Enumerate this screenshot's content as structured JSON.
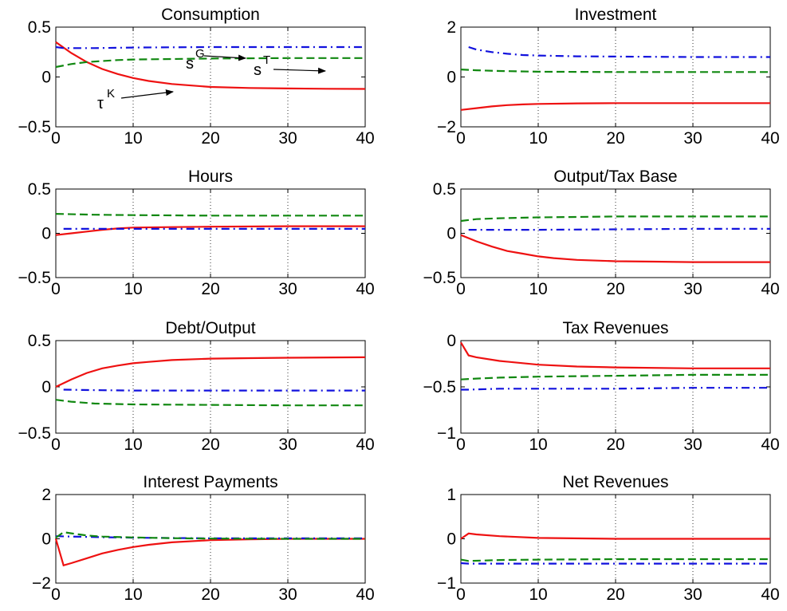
{
  "chart_data": [
    {
      "type": "line",
      "title": "Consumption",
      "xlim": [
        0,
        40
      ],
      "ylim": [
        -0.5,
        0.5
      ],
      "xticks": [
        0,
        10,
        20,
        30,
        40
      ],
      "yticks": [
        -0.5,
        0,
        0.5
      ],
      "ytick_labels": [
        "−0.5",
        "0",
        "0.5"
      ],
      "grid": "vertical dotted",
      "annotations": [
        {
          "text": "τ",
          "sup": "K",
          "points_to": "red series"
        },
        {
          "text": "s",
          "sup": "G",
          "points_to": "blue series"
        },
        {
          "text": "s",
          "sup": "T",
          "points_to": "green series"
        }
      ],
      "series": [
        {
          "color": "#ee1111",
          "style": "solid",
          "x": [
            0,
            2,
            4,
            6,
            8,
            10,
            12,
            15,
            20,
            25,
            30,
            35,
            40
          ],
          "y": [
            0.35,
            0.24,
            0.15,
            0.08,
            0.03,
            -0.01,
            -0.04,
            -0.07,
            -0.1,
            -0.11,
            -0.115,
            -0.118,
            -0.12
          ]
        },
        {
          "color": "#1111dd",
          "style": "dashdot",
          "x": [
            0,
            1,
            2,
            5,
            10,
            20,
            30,
            40
          ],
          "y": [
            0.3,
            0.29,
            0.29,
            0.29,
            0.295,
            0.3,
            0.3,
            0.3
          ]
        },
        {
          "color": "#118811",
          "style": "dashed",
          "x": [
            0,
            2,
            4,
            6,
            8,
            10,
            15,
            20,
            30,
            40
          ],
          "y": [
            0.1,
            0.13,
            0.15,
            0.16,
            0.17,
            0.175,
            0.18,
            0.185,
            0.19,
            0.19
          ]
        }
      ]
    },
    {
      "type": "line",
      "title": "Investment",
      "xlim": [
        0,
        40
      ],
      "ylim": [
        -2,
        2
      ],
      "xticks": [
        0,
        10,
        20,
        30,
        40
      ],
      "yticks": [
        -2,
        0,
        2
      ],
      "ytick_labels": [
        "−2",
        "0",
        "2"
      ],
      "grid": "vertical dotted",
      "series": [
        {
          "color": "#ee1111",
          "style": "solid",
          "x": [
            0,
            2,
            4,
            6,
            8,
            10,
            15,
            20,
            30,
            40
          ],
          "y": [
            -1.32,
            -1.25,
            -1.18,
            -1.13,
            -1.1,
            -1.08,
            -1.06,
            -1.05,
            -1.05,
            -1.05
          ]
        },
        {
          "color": "#1111dd",
          "style": "dashdot",
          "x": [
            1,
            2,
            4,
            6,
            8,
            10,
            15,
            20,
            30,
            40
          ],
          "y": [
            1.2,
            1.1,
            1.0,
            0.93,
            0.88,
            0.86,
            0.83,
            0.82,
            0.8,
            0.8
          ]
        },
        {
          "color": "#118811",
          "style": "dashed",
          "x": [
            0,
            2,
            5,
            10,
            20,
            30,
            40
          ],
          "y": [
            0.3,
            0.27,
            0.24,
            0.21,
            0.2,
            0.2,
            0.2
          ]
        }
      ]
    },
    {
      "type": "line",
      "title": "Hours",
      "xlim": [
        0,
        40
      ],
      "ylim": [
        -0.5,
        0.5
      ],
      "xticks": [
        0,
        10,
        20,
        30,
        40
      ],
      "yticks": [
        -0.5,
        0,
        0.5
      ],
      "ytick_labels": [
        "−0.5",
        "0",
        "0.5"
      ],
      "grid": "vertical dotted",
      "series": [
        {
          "color": "#ee1111",
          "style": "solid",
          "x": [
            0,
            2,
            4,
            6,
            8,
            10,
            15,
            20,
            30,
            40
          ],
          "y": [
            -0.02,
            0.0,
            0.02,
            0.04,
            0.055,
            0.065,
            0.07,
            0.075,
            0.08,
            0.08
          ]
        },
        {
          "color": "#1111dd",
          "style": "dashdot",
          "x": [
            1,
            5,
            10,
            20,
            30,
            40
          ],
          "y": [
            0.05,
            0.05,
            0.05,
            0.05,
            0.05,
            0.05
          ]
        },
        {
          "color": "#118811",
          "style": "dashed",
          "x": [
            0,
            5,
            10,
            20,
            30,
            40
          ],
          "y": [
            0.22,
            0.21,
            0.205,
            0.2,
            0.2,
            0.2
          ]
        }
      ]
    },
    {
      "type": "line",
      "title": "Output/Tax Base",
      "xlim": [
        0,
        40
      ],
      "ylim": [
        -0.5,
        0.5
      ],
      "xticks": [
        0,
        10,
        20,
        30,
        40
      ],
      "yticks": [
        -0.5,
        0,
        0.5
      ],
      "ytick_labels": [
        "−0.5",
        "0",
        "0.5"
      ],
      "grid": "vertical dotted",
      "series": [
        {
          "color": "#ee1111",
          "style": "solid",
          "x": [
            0,
            2,
            4,
            6,
            8,
            10,
            12,
            15,
            20,
            25,
            30,
            35,
            40
          ],
          "y": [
            -0.02,
            -0.09,
            -0.15,
            -0.2,
            -0.23,
            -0.26,
            -0.28,
            -0.3,
            -0.315,
            -0.32,
            -0.325,
            -0.325,
            -0.325
          ]
        },
        {
          "color": "#1111dd",
          "style": "dashdot",
          "x": [
            1,
            5,
            10,
            20,
            30,
            40
          ],
          "y": [
            0.04,
            0.04,
            0.04,
            0.045,
            0.05,
            0.05
          ]
        },
        {
          "color": "#118811",
          "style": "dashed",
          "x": [
            0,
            2,
            5,
            10,
            15,
            20,
            30,
            40
          ],
          "y": [
            0.14,
            0.16,
            0.17,
            0.18,
            0.185,
            0.19,
            0.19,
            0.19
          ]
        }
      ]
    },
    {
      "type": "line",
      "title": "Debt/Output",
      "xlim": [
        0,
        40
      ],
      "ylim": [
        -0.5,
        0.5
      ],
      "xticks": [
        0,
        10,
        20,
        30,
        40
      ],
      "yticks": [
        -0.5,
        0,
        0.5
      ],
      "ytick_labels": [
        "−0.5",
        "0",
        "0.5"
      ],
      "grid": "vertical dotted",
      "series": [
        {
          "color": "#ee1111",
          "style": "solid",
          "x": [
            0,
            2,
            4,
            6,
            8,
            10,
            12,
            15,
            20,
            25,
            30,
            40
          ],
          "y": [
            0.0,
            0.08,
            0.15,
            0.2,
            0.23,
            0.255,
            0.27,
            0.29,
            0.305,
            0.31,
            0.315,
            0.32
          ]
        },
        {
          "color": "#1111dd",
          "style": "dashdot",
          "x": [
            1,
            5,
            10,
            20,
            30,
            40
          ],
          "y": [
            -0.03,
            -0.035,
            -0.04,
            -0.04,
            -0.04,
            -0.04
          ]
        },
        {
          "color": "#118811",
          "style": "dashed",
          "x": [
            0,
            2,
            5,
            10,
            20,
            30,
            40
          ],
          "y": [
            -0.14,
            -0.16,
            -0.18,
            -0.19,
            -0.195,
            -0.2,
            -0.2
          ]
        }
      ]
    },
    {
      "type": "line",
      "title": "Tax Revenues",
      "xlim": [
        0,
        40
      ],
      "ylim": [
        -1,
        0
      ],
      "xticks": [
        0,
        10,
        20,
        30,
        40
      ],
      "yticks": [
        -1,
        -0.5,
        0
      ],
      "ytick_labels": [
        "−1",
        "−0.5",
        "0"
      ],
      "grid": "vertical dotted",
      "series": [
        {
          "color": "#ee1111",
          "style": "solid",
          "x": [
            0,
            1,
            2,
            5,
            10,
            15,
            20,
            30,
            40
          ],
          "y": [
            -0.02,
            -0.16,
            -0.18,
            -0.22,
            -0.26,
            -0.28,
            -0.29,
            -0.3,
            -0.3
          ]
        },
        {
          "color": "#1111dd",
          "style": "dashdot",
          "x": [
            0,
            1,
            5,
            10,
            20,
            30,
            40
          ],
          "y": [
            -0.53,
            -0.53,
            -0.52,
            -0.52,
            -0.52,
            -0.51,
            -0.51
          ]
        },
        {
          "color": "#118811",
          "style": "dashed",
          "x": [
            0,
            2,
            5,
            10,
            20,
            30,
            40
          ],
          "y": [
            -0.42,
            -0.41,
            -0.4,
            -0.39,
            -0.38,
            -0.37,
            -0.37
          ]
        }
      ]
    },
    {
      "type": "line",
      "title": "Interest Payments",
      "xlim": [
        0,
        40
      ],
      "ylim": [
        -2,
        2
      ],
      "xticks": [
        0,
        10,
        20,
        30,
        40
      ],
      "yticks": [
        -2,
        0,
        2
      ],
      "ytick_labels": [
        "−2",
        "0",
        "2"
      ],
      "grid": "vertical dotted",
      "series": [
        {
          "color": "#ee1111",
          "style": "solid",
          "x": [
            0,
            1,
            2,
            4,
            6,
            8,
            10,
            12,
            15,
            20,
            25,
            30,
            40
          ],
          "y": [
            0.0,
            -1.2,
            -1.1,
            -0.88,
            -0.66,
            -0.5,
            -0.37,
            -0.27,
            -0.16,
            -0.06,
            -0.02,
            0.0,
            0.0
          ]
        },
        {
          "color": "#1111dd",
          "style": "dashdot",
          "x": [
            0,
            2,
            5,
            10,
            20,
            30,
            40
          ],
          "y": [
            0.12,
            0.1,
            0.08,
            0.05,
            0.02,
            0.02,
            0.02
          ]
        },
        {
          "color": "#118811",
          "style": "dashed",
          "x": [
            0,
            1,
            2,
            4,
            6,
            10,
            15,
            20,
            30,
            40
          ],
          "y": [
            0.05,
            0.3,
            0.25,
            0.15,
            0.1,
            0.06,
            0.03,
            0.01,
            0.0,
            0.0
          ]
        }
      ]
    },
    {
      "type": "line",
      "title": "Net Revenues",
      "xlim": [
        0,
        40
      ],
      "ylim": [
        -1,
        1
      ],
      "xticks": [
        0,
        10,
        20,
        30,
        40
      ],
      "yticks": [
        -1,
        0,
        1
      ],
      "ytick_labels": [
        "−1",
        "0",
        "1"
      ],
      "grid": "vertical dotted",
      "series": [
        {
          "color": "#ee1111",
          "style": "solid",
          "x": [
            0,
            1,
            2,
            5,
            10,
            20,
            30,
            40
          ],
          "y": [
            0.0,
            0.12,
            0.1,
            0.06,
            0.02,
            0.0,
            0.0,
            0.0
          ]
        },
        {
          "color": "#1111dd",
          "style": "dashdot",
          "x": [
            0,
            1,
            5,
            10,
            20,
            30,
            40
          ],
          "y": [
            -0.55,
            -0.56,
            -0.56,
            -0.56,
            -0.56,
            -0.56,
            -0.56
          ]
        },
        {
          "color": "#118811",
          "style": "dashed",
          "x": [
            0,
            1,
            5,
            10,
            20,
            30,
            40
          ],
          "y": [
            -0.47,
            -0.5,
            -0.48,
            -0.47,
            -0.46,
            -0.46,
            -0.46
          ]
        }
      ]
    }
  ]
}
